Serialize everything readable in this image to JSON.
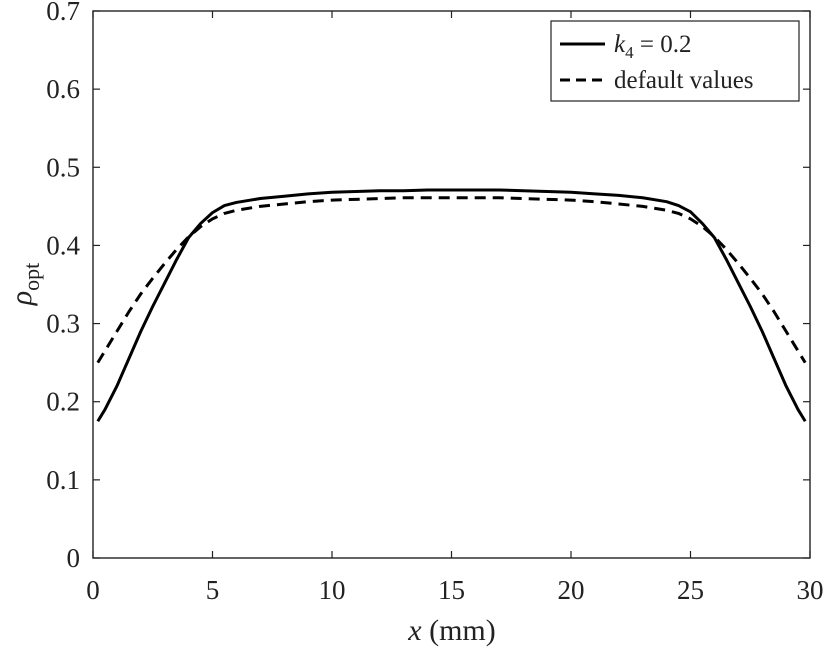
{
  "chart_data": {
    "type": "line",
    "xlabel_var": "x",
    "xlabel_unit": "(mm)",
    "ylabel_var": "ρ",
    "ylabel_sub": "opt",
    "xlim": [
      0,
      30
    ],
    "ylim": [
      0,
      0.7
    ],
    "x_ticks": [
      "0",
      "5",
      "10",
      "15",
      "20",
      "25",
      "30"
    ],
    "y_ticks": [
      "0",
      "0.1",
      "0.2",
      "0.3",
      "0.4",
      "0.5",
      "0.6",
      "0.7"
    ],
    "grid": false,
    "legend_position": "top-right",
    "series": [
      {
        "label_var": "k",
        "label_sub": "4",
        "label_rest": " = 0.2",
        "style": "solid",
        "color": "#000000",
        "x": [
          0.2,
          0.5,
          1,
          1.5,
          2,
          2.5,
          3,
          3.5,
          4,
          4.5,
          5,
          5.5,
          6,
          7,
          8,
          9,
          10,
          11,
          12,
          13,
          14,
          15,
          16,
          17,
          18,
          19,
          20,
          21,
          22,
          23,
          24,
          24.5,
          25,
          25.5,
          26,
          26.5,
          27,
          27.5,
          28,
          28.5,
          29,
          29.5,
          29.8
        ],
        "y": [
          0.175,
          0.19,
          0.22,
          0.255,
          0.29,
          0.322,
          0.352,
          0.382,
          0.41,
          0.428,
          0.442,
          0.451,
          0.455,
          0.46,
          0.463,
          0.466,
          0.468,
          0.469,
          0.47,
          0.47,
          0.471,
          0.471,
          0.471,
          0.471,
          0.47,
          0.469,
          0.468,
          0.466,
          0.464,
          0.461,
          0.456,
          0.451,
          0.443,
          0.428,
          0.41,
          0.382,
          0.352,
          0.322,
          0.29,
          0.255,
          0.22,
          0.19,
          0.175
        ]
      },
      {
        "label": "default values",
        "style": "dashed",
        "color": "#000000",
        "x": [
          0.2,
          0.5,
          1,
          1.5,
          2,
          2.5,
          3,
          3.5,
          4,
          4.5,
          5,
          5.5,
          6,
          7,
          8,
          9,
          10,
          11,
          12,
          13,
          14,
          15,
          16,
          17,
          18,
          19,
          20,
          21,
          22,
          23,
          24,
          24.5,
          25,
          25.5,
          26,
          26.5,
          27,
          27.5,
          28,
          28.5,
          29,
          29.5,
          29.8
        ],
        "y": [
          0.25,
          0.265,
          0.29,
          0.315,
          0.338,
          0.358,
          0.377,
          0.395,
          0.411,
          0.424,
          0.434,
          0.441,
          0.445,
          0.45,
          0.453,
          0.456,
          0.458,
          0.459,
          0.46,
          0.461,
          0.461,
          0.461,
          0.461,
          0.461,
          0.46,
          0.459,
          0.458,
          0.456,
          0.453,
          0.45,
          0.445,
          0.441,
          0.434,
          0.424,
          0.411,
          0.395,
          0.377,
          0.358,
          0.338,
          0.315,
          0.29,
          0.265,
          0.25
        ]
      }
    ]
  }
}
